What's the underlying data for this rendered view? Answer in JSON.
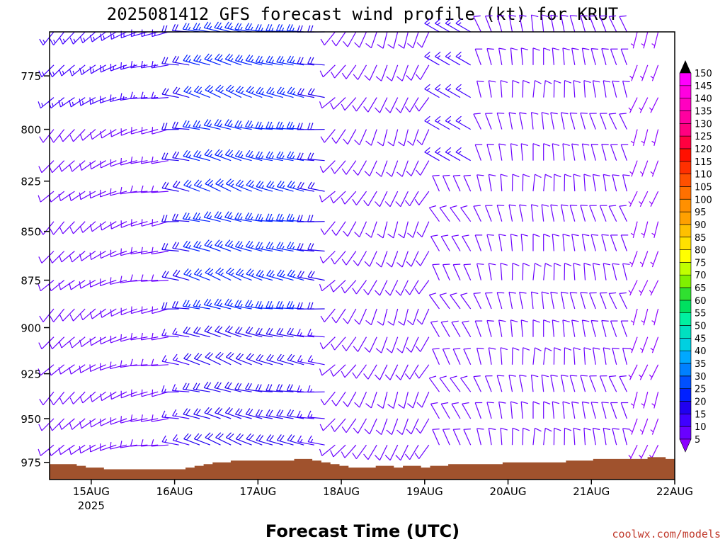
{
  "title": "2025081412 GFS forecast wind profile (kt) for KRUT",
  "credit": "coolwx.com/models",
  "chart_data": {
    "type": "wind-barb-profile",
    "xlabel": "Forecast Time (UTC)",
    "ylabel": "",
    "y_ticks": [
      "775",
      "800",
      "825",
      "850",
      "875",
      "900",
      "925",
      "950",
      "975"
    ],
    "y_range": [
      755,
      985
    ],
    "y_scale": "log-pressure",
    "x_ticks": [
      "15AUG",
      "16AUG",
      "17AUG",
      "18AUG",
      "19AUG",
      "20AUG",
      "21AUG",
      "22AUG"
    ],
    "x_tick_sub": "2025",
    "x_range": [
      "2025-08-14T12Z",
      "2025-08-22T00Z"
    ],
    "time_step_hours": 3,
    "colorbar": {
      "values": [
        5,
        10,
        15,
        20,
        25,
        30,
        35,
        40,
        45,
        50,
        55,
        60,
        65,
        70,
        75,
        80,
        85,
        90,
        95,
        100,
        105,
        110,
        115,
        120,
        125,
        130,
        135,
        140,
        145,
        150
      ],
      "colors": [
        "#8b00ff",
        "#6a00ff",
        "#4000ff",
        "#2000f0",
        "#0020ff",
        "#0050ff",
        "#0080ff",
        "#00a8ff",
        "#00d0e0",
        "#00e0c0",
        "#00f0a0",
        "#00e060",
        "#30e030",
        "#80f000",
        "#c0ff00",
        "#ffff00",
        "#ffe000",
        "#ffc000",
        "#ffa000",
        "#ff9000",
        "#ff7000",
        "#ff5000",
        "#ff3000",
        "#ff1000",
        "#ff0040",
        "#ff0080",
        "#ff00a0",
        "#ff00c0",
        "#ff00e0",
        "#ff00ff"
      ]
    },
    "terrain": {
      "color": "#a0522d",
      "surface_pressure": [
        976,
        976,
        976,
        977,
        978,
        978,
        979,
        979,
        979,
        979,
        979,
        979,
        979,
        979,
        979,
        978,
        977,
        976,
        975,
        975,
        974,
        974,
        974,
        974,
        974,
        974,
        974,
        973,
        973,
        974,
        975,
        976,
        977,
        978,
        978,
        978,
        977,
        977,
        978,
        977,
        977,
        978,
        977,
        977,
        976,
        976,
        976,
        976,
        976,
        976,
        975,
        975,
        975,
        975,
        975,
        975,
        975,
        974,
        974,
        974,
        973,
        973,
        973,
        973,
        973,
        973,
        972,
        972,
        973
      ]
    },
    "wind_columns": [
      {
        "regime": "lightW",
        "dir": 225,
        "spd": 10
      },
      {
        "regime": "lightW",
        "dir": 225,
        "spd": 10
      },
      {
        "regime": "lightW",
        "dir": 230,
        "spd": 10
      },
      {
        "regime": "lightW",
        "dir": 230,
        "spd": 10
      },
      {
        "regime": "lightW",
        "dir": 235,
        "spd": 10
      },
      {
        "regime": "lightW",
        "dir": 240,
        "spd": 10
      },
      {
        "regime": "lightW",
        "dir": 245,
        "spd": 10
      },
      {
        "regime": "lightW",
        "dir": 250,
        "spd": 10
      },
      {
        "regime": "lightW",
        "dir": 255,
        "spd": 10
      },
      {
        "regime": "lightW",
        "dir": 260,
        "spd": 10
      },
      {
        "regime": "lightW",
        "dir": 260,
        "spd": 10
      },
      {
        "regime": "lightW",
        "dir": 260,
        "spd": 10
      },
      {
        "regime": "W",
        "dir": 275,
        "spd": 20
      },
      {
        "regime": "W",
        "dir": 280,
        "spd": 20
      },
      {
        "regime": "W",
        "dir": 285,
        "spd": 25
      },
      {
        "regime": "W",
        "dir": 285,
        "spd": 25
      },
      {
        "regime": "W",
        "dir": 290,
        "spd": 25
      },
      {
        "regime": "W",
        "dir": 290,
        "spd": 25
      },
      {
        "regime": "W",
        "dir": 290,
        "spd": 25
      },
      {
        "regime": "W",
        "dir": 285,
        "spd": 25
      },
      {
        "regime": "W",
        "dir": 285,
        "spd": 25
      },
      {
        "regime": "W",
        "dir": 280,
        "spd": 25
      },
      {
        "regime": "W",
        "dir": 280,
        "spd": 25
      },
      {
        "regime": "W",
        "dir": 280,
        "spd": 25
      },
      {
        "regime": "W",
        "dir": 280,
        "spd": 25
      },
      {
        "regime": "W",
        "dir": 275,
        "spd": 20
      },
      {
        "regime": "W",
        "dir": 275,
        "spd": 20
      },
      {
        "regime": "SW",
        "dir": 225,
        "spd": 10
      },
      {
        "regime": "SW",
        "dir": 220,
        "spd": 10
      },
      {
        "regime": "SW",
        "dir": 215,
        "spd": 10
      },
      {
        "regime": "SW",
        "dir": 210,
        "spd": 10
      },
      {
        "regime": "SW",
        "dir": 205,
        "spd": 10
      },
      {
        "regime": "SW",
        "dir": 200,
        "spd": 10
      },
      {
        "regime": "SW",
        "dir": 200,
        "spd": 10
      },
      {
        "regime": "SW",
        "dir": 200,
        "spd": 10
      },
      {
        "regime": "SW",
        "dir": 205,
        "spd": 10
      },
      {
        "regime": "SW",
        "dir": 210,
        "spd": 10
      },
      {
        "regime": "mixed",
        "dir": 330,
        "spd": 10
      },
      {
        "regime": "mixed",
        "dir": 330,
        "spd": 10
      },
      {
        "regime": "mixed",
        "dir": 330,
        "spd": 10
      },
      {
        "regime": "mixed",
        "dir": 330,
        "spd": 10
      },
      {
        "regime": "N",
        "dir": 340,
        "spd": 10
      },
      {
        "regime": "N",
        "dir": 345,
        "spd": 10
      },
      {
        "regime": "N",
        "dir": 350,
        "spd": 10
      },
      {
        "regime": "N",
        "dir": 355,
        "spd": 10
      },
      {
        "regime": "N",
        "dir": 355,
        "spd": 10
      },
      {
        "regime": "N",
        "dir": 0,
        "spd": 10
      },
      {
        "regime": "N",
        "dir": 0,
        "spd": 10
      },
      {
        "regime": "N",
        "dir": 355,
        "spd": 10
      },
      {
        "regime": "N",
        "dir": 355,
        "spd": 10
      },
      {
        "regime": "N",
        "dir": 350,
        "spd": 10
      },
      {
        "regime": "N",
        "dir": 350,
        "spd": 10
      },
      {
        "regime": "N",
        "dir": 345,
        "spd": 10
      },
      {
        "regime": "N",
        "dir": 345,
        "spd": 10
      },
      {
        "regime": "N",
        "dir": 340,
        "spd": 10
      },
      {
        "regime": "N",
        "dir": 340,
        "spd": 10
      },
      {
        "regime": "lightS",
        "dir": 200,
        "spd": 5
      },
      {
        "regime": "lightS",
        "dir": 200,
        "spd": 5
      },
      {
        "regime": "lightS",
        "dir": 200,
        "spd": 5
      },
      {
        "regime": "lightS",
        "dir": 195,
        "spd": 5
      },
      {
        "regime": "lightS",
        "dir": 195,
        "spd": 5
      },
      {
        "regime": "lightS",
        "dir": 190,
        "spd": 5
      },
      {
        "regime": "lightS",
        "dir": 190,
        "spd": 5
      },
      {
        "regime": "lightS",
        "dir": 190,
        "spd": 5
      },
      {
        "regime": "lightS",
        "dir": 185,
        "spd": 5
      },
      {
        "regime": "lightS",
        "dir": 180,
        "spd": 5
      },
      {
        "regime": "lightS",
        "dir": 180,
        "spd": 5
      },
      {
        "regime": "lightS",
        "dir": 175,
        "spd": 5
      },
      {
        "regime": "lightS",
        "dir": 170,
        "spd": 5
      }
    ]
  }
}
